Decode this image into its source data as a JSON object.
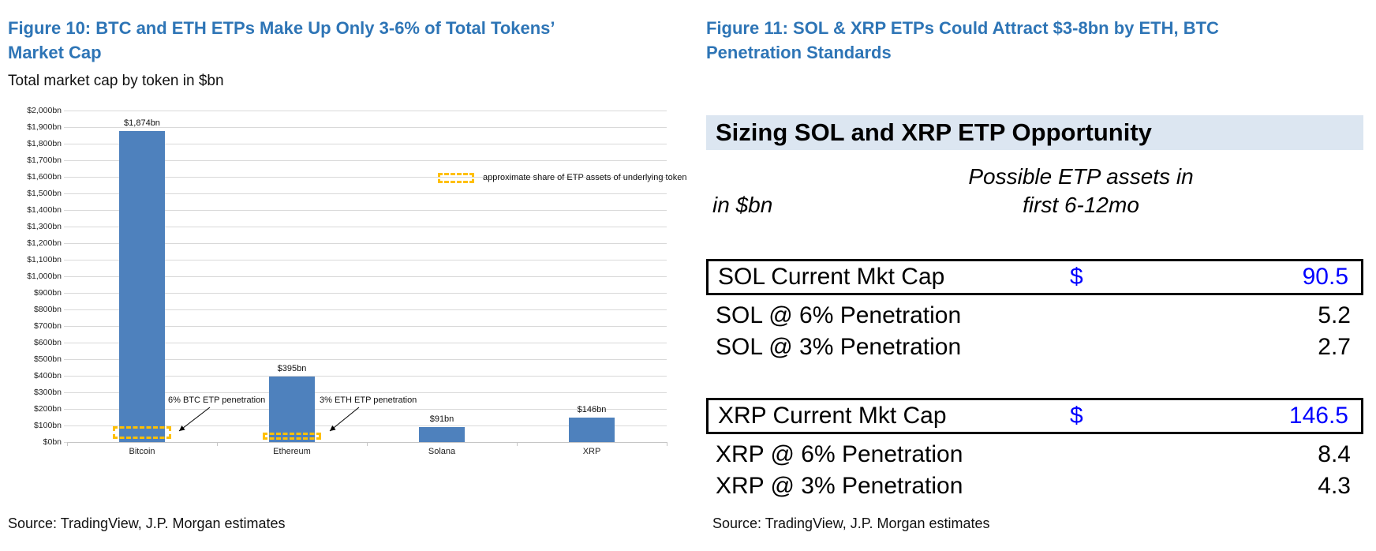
{
  "figure10": {
    "title_lines": [
      "Figure 10: BTC and ETH ETPs Make Up Only 3-6% of Total Tokens’",
      "Market Cap"
    ],
    "subtitle": "Total market cap by token in $bn",
    "source": "Source: TradingView, J.P. Morgan estimates"
  },
  "figure11": {
    "title_lines": [
      "Figure 11: SOL & XRP ETPs Could Attract $3-8bn by ETH, BTC",
      "Penetration Standards"
    ],
    "table": {
      "header": "Sizing SOL and XRP ETP Opportunity",
      "unit_label": "in $bn",
      "col_header_lines": [
        "Possible ETP assets in",
        "first 6-12mo"
      ],
      "rows": [
        {
          "label": "SOL Current Mkt Cap",
          "currency": "$",
          "value": "90.5"
        },
        {
          "label": "SOL @ 6% Penetration",
          "currency": "",
          "value": "5.2"
        },
        {
          "label": "SOL @ 3% Penetration",
          "currency": "",
          "value": "2.7"
        },
        {
          "label": "XRP Current Mkt Cap",
          "currency": "$",
          "value": "146.5"
        },
        {
          "label": "XRP @ 6% Penetration",
          "currency": "",
          "value": "8.4"
        },
        {
          "label": "XRP @ 3% Penetration",
          "currency": "",
          "value": "4.3"
        }
      ]
    },
    "source": "Source: TradingView, J.P. Morgan estimates"
  },
  "chart_data": {
    "type": "bar",
    "title": "Total market cap by token in $bn",
    "categories": [
      "Bitcoin",
      "Ethereum",
      "Solana",
      "XRP"
    ],
    "values": [
      1874,
      395,
      91,
      146
    ],
    "bar_labels": [
      "$1,874bn",
      "$395bn",
      "$91bn",
      "$146bn"
    ],
    "xlabel": "",
    "ylabel": "",
    "ylim": [
      0,
      2000
    ],
    "ytick_step": 100,
    "ytick_format": "$1,000bn",
    "grid": true,
    "legend_position": "upper-right-inside",
    "bar_color": "#4e81bd",
    "annotations": [
      {
        "text": "6% BTC ETP penetration",
        "target": "Bitcoin"
      },
      {
        "text": "3% ETH ETP penetration",
        "target": "Ethereum"
      }
    ],
    "legend": {
      "label": "approximate share of ETP assets of underlying token",
      "style": "dashed-box",
      "color": "#ffc000"
    }
  },
  "colors": {
    "title_blue": "#2e75b6",
    "bar_blue": "#4e81bd",
    "dashed_gold": "#ffc000",
    "table_value_blue": "#0000ff",
    "header_band_blue": "#dce6f1"
  }
}
